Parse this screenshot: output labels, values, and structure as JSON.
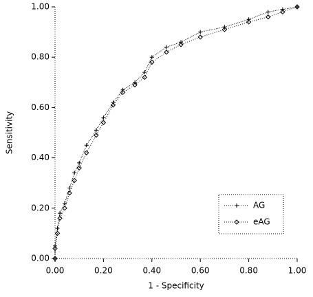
{
  "chart_data": {
    "type": "line",
    "x_label": "1 - Specificity",
    "y_label": "Sensitivity",
    "xlim": [
      0,
      1
    ],
    "ylim": [
      0,
      1
    ],
    "xticks": [
      {
        "value": 0,
        "label": "0.00"
      },
      {
        "value": 0.2,
        "label": "0.20"
      },
      {
        "value": 0.4,
        "label": "0.40"
      },
      {
        "value": 0.6,
        "label": "0.60"
      },
      {
        "value": 0.8,
        "label": "0.80"
      },
      {
        "value": 1,
        "label": "1.00"
      }
    ],
    "yticks": [
      {
        "value": 0,
        "label": "0.00"
      },
      {
        "value": 0.2,
        "label": "0.20"
      },
      {
        "value": 0.4,
        "label": "0.40"
      },
      {
        "value": 0.6,
        "label": "0.60"
      },
      {
        "value": 0.8,
        "label": "0.80"
      },
      {
        "value": 1,
        "label": "1.00"
      }
    ],
    "legend": "lower right",
    "series": [
      {
        "name": "AG",
        "color": "#000000",
        "marker": "plus",
        "x": [
          0,
          0,
          0.01,
          0.02,
          0.04,
          0.06,
          0.08,
          0.1,
          0.13,
          0.17,
          0.2,
          0.24,
          0.28,
          0.33,
          0.37,
          0.4,
          0.46,
          0.52,
          0.6,
          0.7,
          0.8,
          0.88,
          0.94,
          1
        ],
        "values": [
          0,
          0.05,
          0.12,
          0.18,
          0.22,
          0.28,
          0.34,
          0.38,
          0.45,
          0.51,
          0.56,
          0.62,
          0.67,
          0.7,
          0.74,
          0.8,
          0.84,
          0.86,
          0.9,
          0.92,
          0.95,
          0.98,
          0.99,
          1
        ]
      },
      {
        "name": "eAG",
        "color": "#000000",
        "marker": "diamond",
        "x": [
          0,
          0,
          0.01,
          0.02,
          0.04,
          0.06,
          0.08,
          0.1,
          0.13,
          0.17,
          0.2,
          0.24,
          0.28,
          0.33,
          0.37,
          0.4,
          0.46,
          0.52,
          0.6,
          0.7,
          0.8,
          0.88,
          0.94,
          1
        ],
        "values": [
          0,
          0.04,
          0.1,
          0.16,
          0.2,
          0.26,
          0.31,
          0.36,
          0.42,
          0.49,
          0.54,
          0.61,
          0.66,
          0.69,
          0.72,
          0.78,
          0.82,
          0.85,
          0.88,
          0.91,
          0.94,
          0.96,
          0.98,
          1
        ]
      }
    ]
  }
}
